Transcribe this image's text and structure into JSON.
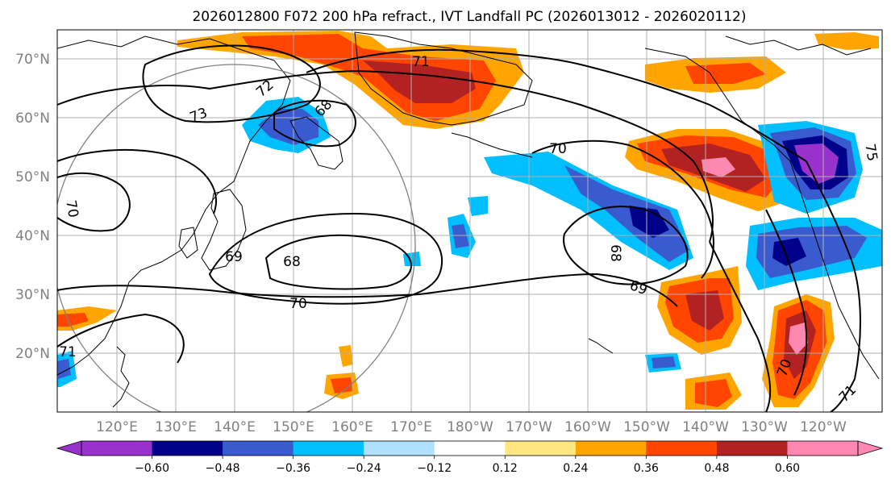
{
  "title": "2026012800 F072 200 hPa refract., IVT Landfall PC (2026013012 - 2026020112)",
  "lat_labels": [
    "70°N",
    "60°N",
    "50°N",
    "40°N",
    "30°N",
    "20°N"
  ],
  "lon_labels": [
    "120°E",
    "130°E",
    "140°E",
    "150°E",
    "160°E",
    "170°E",
    "180°W",
    "170°W",
    "160°W",
    "150°W",
    "140°W",
    "130°W",
    "120°W"
  ],
  "colorbar": {
    "ticks": [
      "−0.60",
      "−0.48",
      "−0.36",
      "−0.24",
      "−0.12",
      "0.12",
      "0.24",
      "0.36",
      "0.48",
      "0.60"
    ],
    "colors": [
      "#9932CC",
      "#00008B",
      "#3A5BD0",
      "#00BFFF",
      "#B0E0FF",
      "#FFFFFF",
      "#FFE680",
      "#FFA500",
      "#FF4500",
      "#B22222",
      "#FF88B0"
    ]
  },
  "contour_labels": [
    "71",
    "72",
    "73",
    "68",
    "70",
    "69",
    "68",
    "68",
    "70",
    "69",
    "70",
    "71",
    "71",
    "70",
    "75"
  ],
  "colors": {
    "coast": "#000000",
    "grid": "#b0b0b0",
    "circle": "#808080"
  }
}
